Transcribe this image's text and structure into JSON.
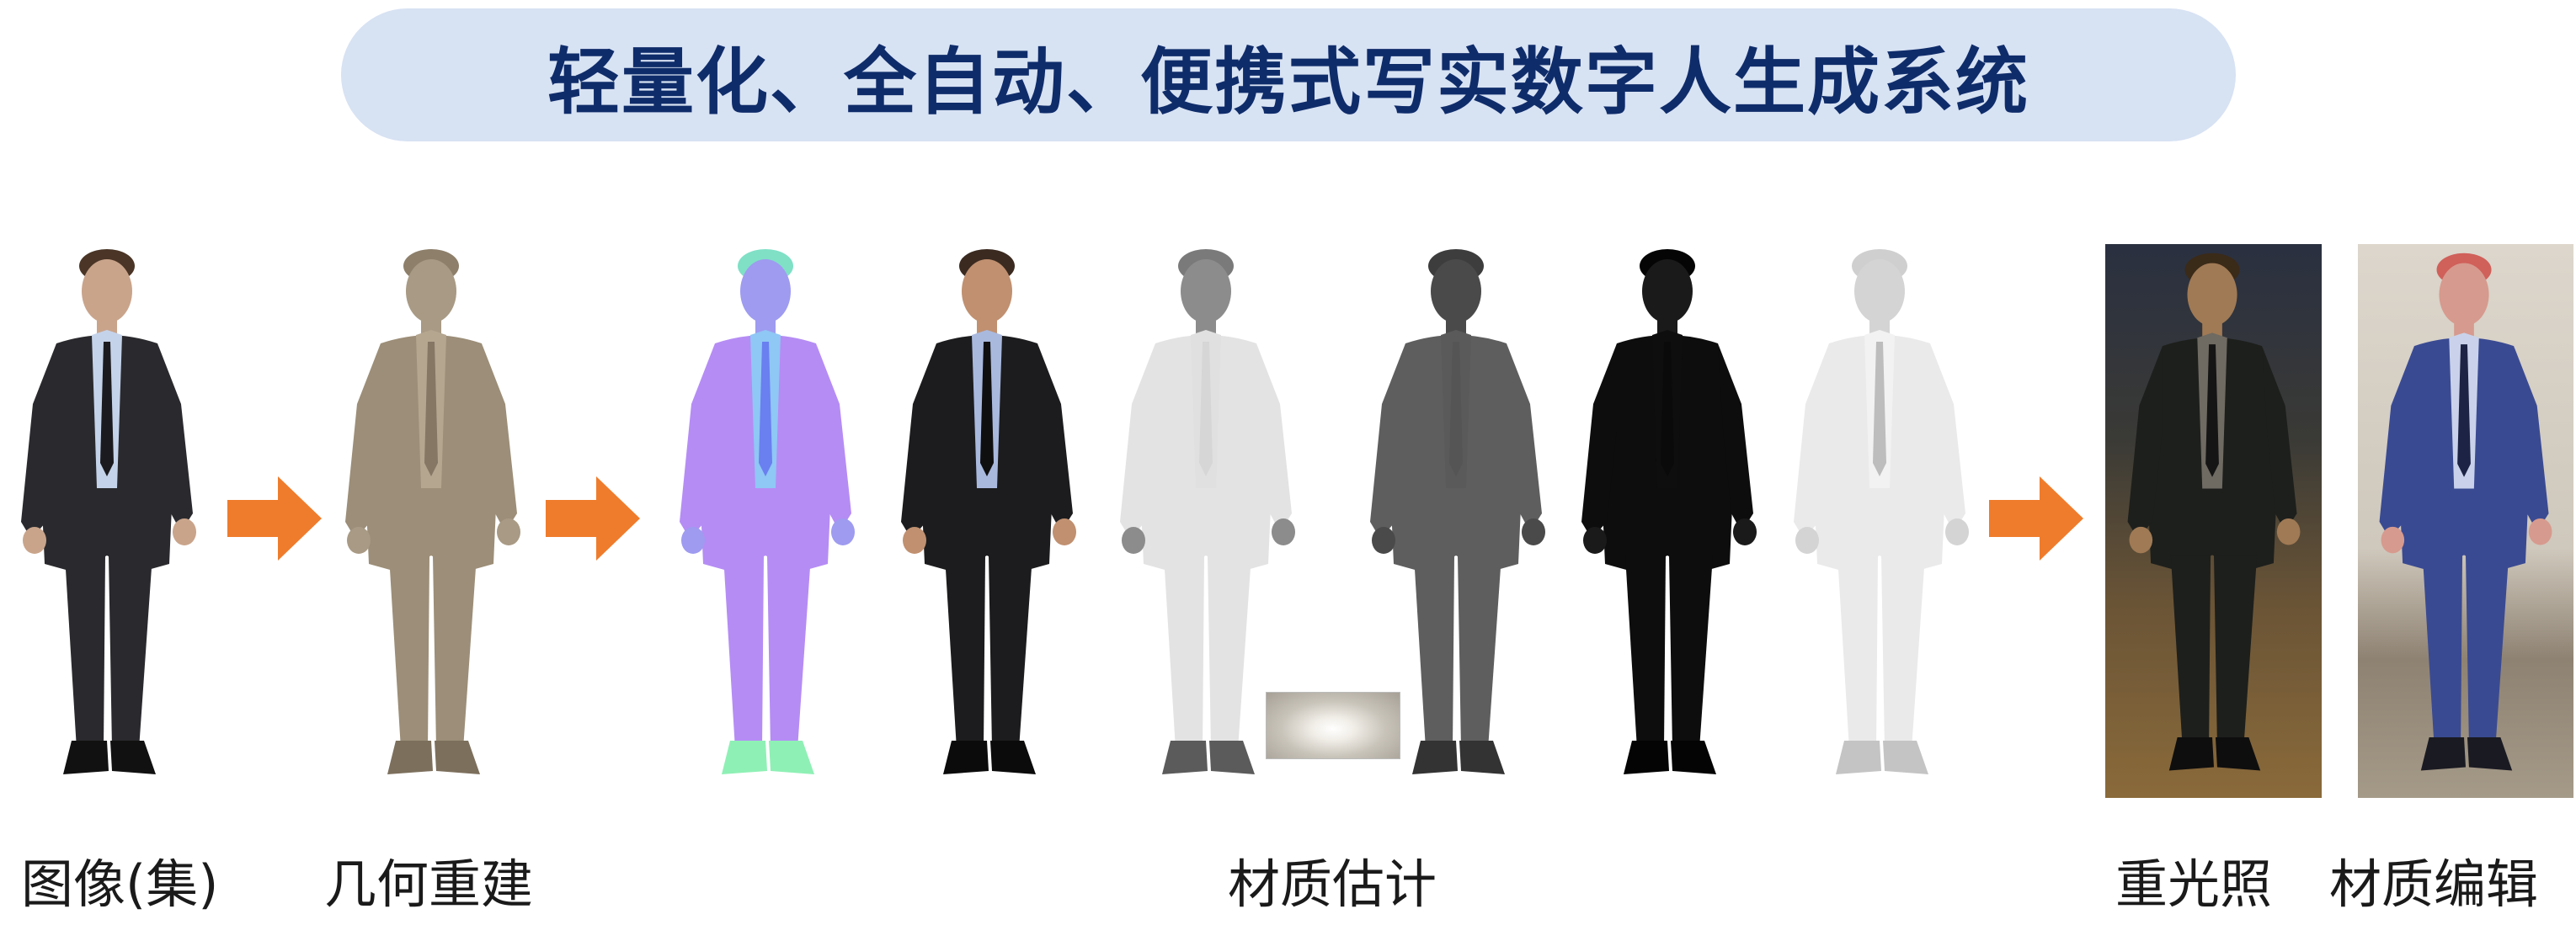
{
  "title": "轻量化、全自动、便携式写实数字人生成系统",
  "stages": [
    {
      "label": "图像(集)"
    },
    {
      "label": "几何重建"
    },
    {
      "label": "材质估计"
    },
    {
      "label": "重光照"
    },
    {
      "label": "材质编辑"
    }
  ],
  "figures": [
    {
      "name": "input-photo",
      "palette": {
        "head": "#c9a48b",
        "hair": "#4a3526",
        "suit": "#2a2a2e",
        "shirt": "#c5d3ea",
        "tie": "#1b1b1f",
        "shoe": "#111111"
      }
    },
    {
      "name": "geometry-mesh",
      "palette": {
        "head": "#a89a84",
        "hair": "#8d7f6a",
        "suit": "#9c8e78",
        "shirt": "#b4a68f",
        "tie": "#857764",
        "shoe": "#7c6f5c"
      }
    },
    {
      "name": "normal-map",
      "palette": {
        "head": "#9e9bf0",
        "hair": "#7fe0c6",
        "suit": "#b58cf4",
        "shirt": "#8fc7f5",
        "tie": "#6a7ff0",
        "shoe": "#8ff0b5"
      }
    },
    {
      "name": "albedo-map",
      "palette": {
        "head": "#c09070",
        "hair": "#3a2a20",
        "suit": "#1c1c1e",
        "shirt": "#a9b9de",
        "tie": "#0f0f10",
        "shoe": "#0b0b0b"
      }
    },
    {
      "name": "roughness-map",
      "palette": {
        "head": "#8c8c8c",
        "hair": "#7a7a7a",
        "suit": "#e3e3e3",
        "shirt": "#e0e0e0",
        "tie": "#d6d6d6",
        "shoe": "#5b5b5b"
      }
    },
    {
      "name": "specular-map",
      "palette": {
        "head": "#4a4a4a",
        "hair": "#3d3d3d",
        "suit": "#5e5e5e",
        "shirt": "#5a5a5a",
        "tie": "#555555",
        "shoe": "#333333"
      }
    },
    {
      "name": "metallic-map",
      "palette": {
        "head": "#1a1a1a",
        "hair": "#050505",
        "suit": "#0d0d0d",
        "shirt": "#0e0e0e",
        "tie": "#0a0a0a",
        "shoe": "#040404"
      }
    },
    {
      "name": "shading-map",
      "palette": {
        "head": "#d4d4d4",
        "hair": "#cfcfcf",
        "suit": "#eaeaea",
        "shirt": "#f2f2f2",
        "tie": "#bdbdbd",
        "shoe": "#c4c4c4"
      }
    },
    {
      "name": "relit-figure",
      "palette": {
        "head": "#a07a55",
        "hair": "#3a2a18",
        "suit": "#1d1f1c",
        "shirt": "#6f6a62",
        "tie": "#151515",
        "shoe": "#0e0e0e"
      }
    },
    {
      "name": "edited-figure",
      "palette": {
        "head": "#d79a8e",
        "hair": "#d0605a",
        "suit": "#3a4a92",
        "shirt": "#c9d2ea",
        "tie": "#1d2344",
        "shoe": "#1a1a22"
      }
    }
  ],
  "colors": {
    "arrow": "#ef7c2c",
    "banner": "#d7e2f3",
    "title": "#0f2c6a"
  }
}
